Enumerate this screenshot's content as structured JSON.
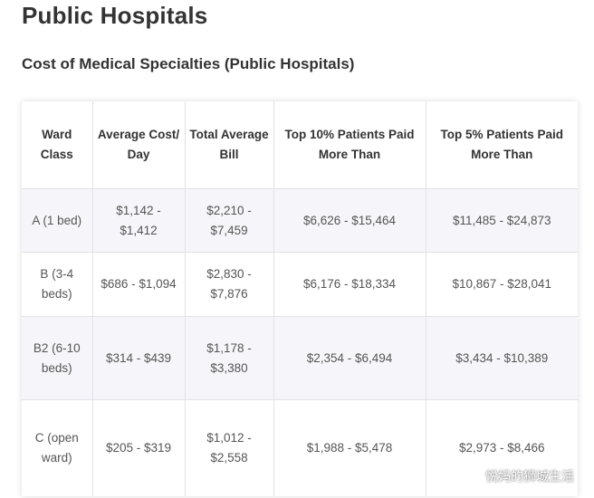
{
  "page_title": "Public Hospitals",
  "section_title": "Cost of Medical Specialties (Public Hospitals)",
  "table": {
    "headers": [
      "Ward Class",
      "Average Cost/ Day",
      "Total Average Bill",
      "Top 10% Patients Paid More Than",
      "Top 5% Patients Paid More Than"
    ],
    "rows": [
      [
        "A (1 bed)",
        "$1,142 - $1,412",
        "$2,210 - $7,459",
        "$6,626 - $15,464",
        "$11,485 - $24,873"
      ],
      [
        "B (3-4 beds)",
        "$686 - $1,094",
        "$2,830 - $7,876",
        "$6,176 - $18,334",
        "$10,867 - $28,041"
      ],
      [
        "B2 (6-10 beds)",
        "$314 - $439",
        "$1,178 - $3,380",
        "$2,354 - $6,494",
        "$3,434 - $10,389"
      ],
      [
        "C (open ward)",
        "$205 - $319",
        "$1,012 - $2,558",
        "$1,988 - $5,478",
        "$2,973 - $8,466"
      ]
    ]
  },
  "watermark": {
    "text": "悦妈的狮城生活",
    "icon": "wechat-icon"
  },
  "colors": {
    "heading": "#333333",
    "cell_text": "#555555",
    "shaded_row": "#f6f6fa",
    "grid_line": "#e2e2e8"
  }
}
